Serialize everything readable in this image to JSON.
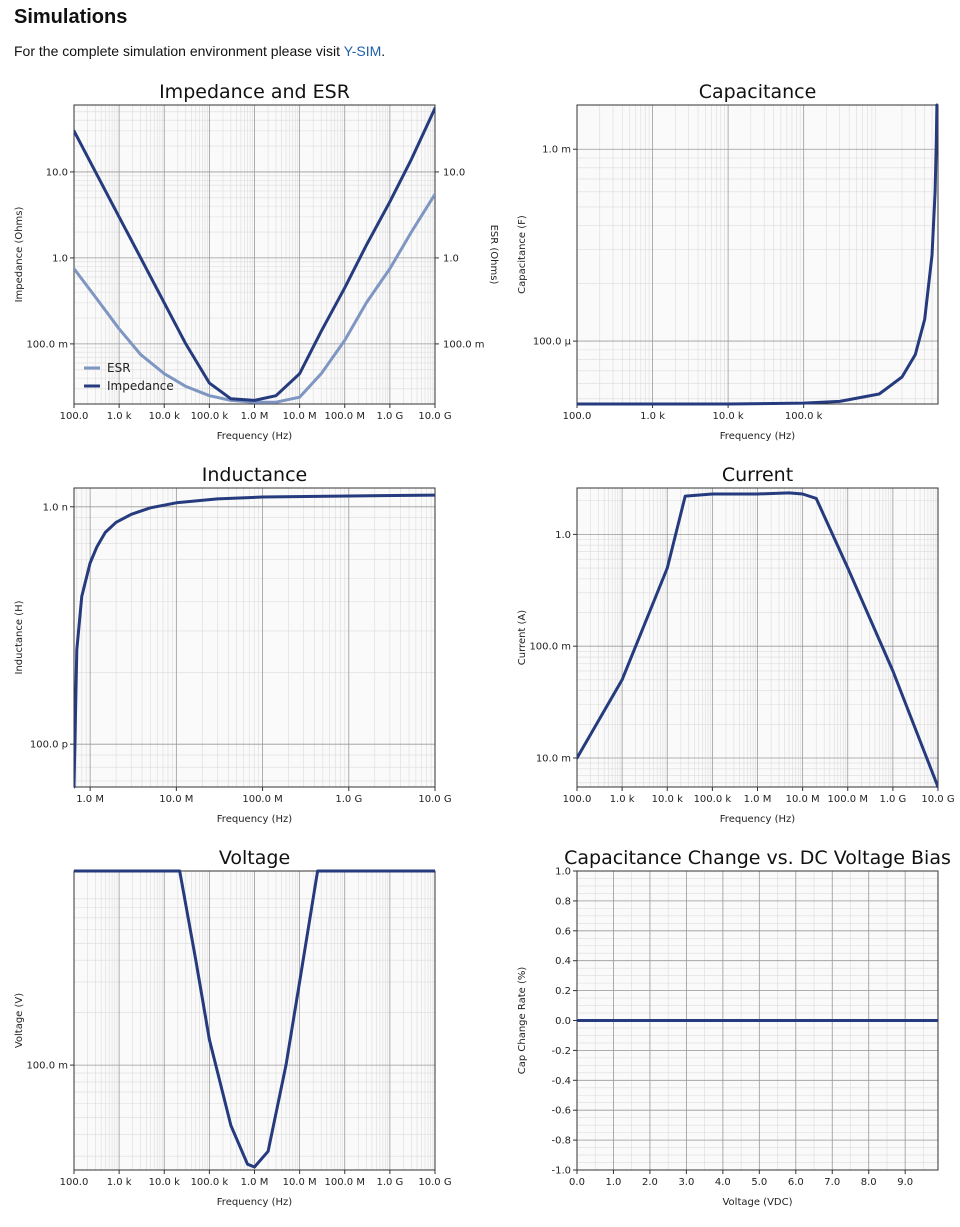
{
  "page": {
    "heading": "Simulations",
    "intro_text": "For the complete simulation environment please visit ",
    "link_text": "Y-SIM",
    "intro_end": "."
  },
  "colors": {
    "impedance": "#263a7e",
    "esr": "#7f96c3",
    "grid": "#c4c4c4",
    "plot_bg": "#fafafa"
  },
  "chart_data": [
    {
      "id": "impedance",
      "type": "line",
      "title": "Impedance and ESR",
      "xlabel": "Frequency (Hz)",
      "ylabel": "Impedance (Ohms)",
      "y2label": "ESR (Ohms)",
      "xscale": "log",
      "yscale": "log",
      "xlim": [
        100,
        10000000000
      ],
      "ylim": [
        0.02,
        60
      ],
      "xticks": [
        100,
        1000,
        10000,
        100000,
        1000000,
        10000000,
        100000000,
        1000000000,
        10000000000
      ],
      "xticklabels": [
        "100.0",
        "1.0 k",
        "10.0 k",
        "100.0 k",
        "1.0 M",
        "10.0 M",
        "100.0 M",
        "1.0 G",
        "10.0 G"
      ],
      "yticks": [
        0.1,
        1,
        10
      ],
      "yticklabels": [
        "100.0 m",
        "1.0",
        "10.0"
      ],
      "y2ticklabels": [
        "100.0 m",
        "1.0",
        "10.0"
      ],
      "grid": true,
      "legend_position": "bottom-left",
      "series": [
        {
          "name": "ESR",
          "color": "#7f96c3",
          "x": [
            100,
            300,
            1000,
            3000,
            10000,
            30000,
            100000,
            300000,
            1000000,
            3000000,
            10000000,
            30000000,
            100000000,
            300000000,
            1000000000,
            3000000000,
            10000000000
          ],
          "y": [
            0.75,
            0.35,
            0.15,
            0.075,
            0.045,
            0.032,
            0.025,
            0.022,
            0.021,
            0.021,
            0.024,
            0.045,
            0.11,
            0.3,
            0.75,
            2.0,
            5.5
          ]
        },
        {
          "name": "Impedance",
          "color": "#263a7e",
          "x": [
            100,
            300,
            1000,
            3000,
            10000,
            30000,
            100000,
            300000,
            1000000,
            3000000,
            10000000,
            30000000,
            100000000,
            300000000,
            1000000000,
            3000000000,
            10000000000
          ],
          "y": [
            30,
            10,
            3.0,
            1.0,
            0.3,
            0.1,
            0.035,
            0.023,
            0.022,
            0.025,
            0.045,
            0.14,
            0.45,
            1.4,
            4.5,
            14,
            55
          ]
        }
      ]
    },
    {
      "id": "capacitance",
      "type": "line",
      "title": "Capacitance",
      "xlabel": "Frequency (Hz)",
      "ylabel": "Capacitance (F)",
      "xscale": "log",
      "yscale": "log",
      "xlim": [
        100,
        6000000
      ],
      "ylim": [
        4.7e-05,
        0.0017
      ],
      "xticks": [
        100,
        1000,
        10000,
        100000
      ],
      "xticklabels": [
        "100.0",
        "1.0 k",
        "10.0 k",
        "100.0 k"
      ],
      "yticks": [
        0.0001,
        0.001
      ],
      "yticklabels": [
        "100.0 µ",
        "1.0 m"
      ],
      "grid": true,
      "series": [
        {
          "name": "",
          "color": "#263a7e",
          "x": [
            100,
            10000,
            100000,
            300000,
            1000000,
            2000000,
            3000000,
            4000000,
            5000000,
            5500000,
            5700000,
            5800000
          ],
          "y": [
            4.7e-05,
            4.7e-05,
            4.75e-05,
            4.85e-05,
            5.3e-05,
            6.5e-05,
            8.5e-05,
            0.00013,
            0.00028,
            0.0006,
            0.0011,
            0.0017
          ]
        }
      ]
    },
    {
      "id": "inductance",
      "type": "line",
      "title": "Inductance",
      "xlabel": "Frequency (Hz)",
      "ylabel": "Inductance (H)",
      "xscale": "log",
      "yscale": "log",
      "xlim": [
        650000,
        10000000000
      ],
      "ylim": [
        6.6e-11,
        1.2e-09
      ],
      "xticks": [
        1000000,
        10000000,
        100000000,
        1000000000,
        10000000000
      ],
      "xticklabels": [
        "1.0 M",
        "10.0 M",
        "100.0 M",
        "1.0 G",
        "10.0 G"
      ],
      "yticks": [
        1e-10,
        1e-09
      ],
      "yticklabels": [
        "100.0 p",
        "1.0 n"
      ],
      "grid": true,
      "series": [
        {
          "name": "",
          "color": "#263a7e",
          "x": [
            650000,
            700000,
            800000,
            1000000,
            1200000,
            1500000,
            2000000,
            3000000,
            5000000,
            10000000,
            30000000,
            100000000,
            1000000000,
            10000000000
          ],
          "y": [
            6.6e-11,
            2.5e-10,
            4.2e-10,
            5.8e-10,
            6.8e-10,
            7.8e-10,
            8.6e-10,
            9.3e-10,
            9.9e-10,
            1.04e-09,
            1.08e-09,
            1.1e-09,
            1.11e-09,
            1.12e-09
          ]
        }
      ]
    },
    {
      "id": "current",
      "type": "line",
      "title": "Current",
      "xlabel": "Frequency (Hz)",
      "ylabel": "Current (A)",
      "xscale": "log",
      "yscale": "log",
      "xlim": [
        100,
        10000000000
      ],
      "ylim": [
        0.0055,
        2.6
      ],
      "xticks": [
        100,
        1000,
        10000,
        100000,
        1000000,
        10000000,
        100000000,
        1000000000,
        10000000000
      ],
      "xticklabels": [
        "100.0",
        "1.0 k",
        "10.0 k",
        "100.0 k",
        "1.0 M",
        "10.0 M",
        "100.0 M",
        "1.0 G",
        "10.0 G"
      ],
      "yticks": [
        0.01,
        0.1,
        1
      ],
      "yticklabels": [
        "10.0 m",
        "100.0 m",
        "1.0"
      ],
      "grid": true,
      "series": [
        {
          "name": "",
          "color": "#263a7e",
          "x": [
            100,
            1000,
            10000,
            25000,
            100000,
            1000000,
            5000000,
            10000000,
            20000000,
            100000000,
            1000000000,
            10000000000
          ],
          "y": [
            0.01,
            0.05,
            0.5,
            2.2,
            2.3,
            2.3,
            2.35,
            2.3,
            2.1,
            0.5,
            0.06,
            0.0055
          ]
        }
      ]
    },
    {
      "id": "voltage",
      "type": "line",
      "title": "Voltage",
      "xlabel": "Frequency (Hz)",
      "ylabel": "Voltage (V)",
      "xscale": "log",
      "yscale": "log",
      "xlim": [
        100,
        10000000000
      ],
      "ylim": [
        0.025,
        1.3
      ],
      "xticks": [
        100,
        1000,
        10000,
        100000,
        1000000,
        10000000,
        100000000,
        1000000000,
        10000000000
      ],
      "xticklabels": [
        "100.0",
        "1.0 k",
        "10.0 k",
        "100.0 k",
        "1.0 M",
        "10.0 M",
        "100.0 M",
        "1.0 G",
        "10.0 G"
      ],
      "yticks": [
        0.1
      ],
      "yticklabels": [
        "100.0 m"
      ],
      "grid": true,
      "series": [
        {
          "name": "",
          "color": "#263a7e",
          "x": [
            100,
            10000,
            22000,
            50000,
            100000,
            300000,
            700000,
            1000000,
            2000000,
            5000000,
            10000000,
            25000000,
            100000000,
            10000000000
          ],
          "y": [
            1.3,
            1.3,
            1.3,
            0.4,
            0.14,
            0.045,
            0.027,
            0.026,
            0.032,
            0.1,
            0.3,
            1.3,
            1.3,
            1.3
          ]
        }
      ]
    },
    {
      "id": "bias",
      "type": "line",
      "title": "Capacitance Change vs. DC Voltage Bias",
      "xlabel": "Voltage (VDC)",
      "ylabel": "Cap Change Rate (%)",
      "xscale": "linear",
      "yscale": "linear",
      "xlim": [
        0,
        9.9
      ],
      "ylim": [
        -1,
        1
      ],
      "xticks": [
        0,
        1,
        2,
        3,
        4,
        5,
        6,
        7,
        8,
        9
      ],
      "xticklabels": [
        "0.0",
        "1.0",
        "2.0",
        "3.0",
        "4.0",
        "5.0",
        "6.0",
        "7.0",
        "8.0",
        "9.0"
      ],
      "yticks": [
        -1,
        -0.8,
        -0.6,
        -0.4,
        -0.2,
        0,
        0.2,
        0.4,
        0.6,
        0.8,
        1
      ],
      "yticklabels": [
        "-1.0",
        "-0.8",
        "-0.6",
        "-0.4",
        "-0.2",
        "0.0",
        "0.2",
        "0.4",
        "0.6",
        "0.8",
        "1.0"
      ],
      "grid": true,
      "series": [
        {
          "name": "",
          "color": "#263a7e",
          "x": [
            0,
            9.9
          ],
          "y": [
            0,
            0
          ]
        }
      ]
    }
  ]
}
